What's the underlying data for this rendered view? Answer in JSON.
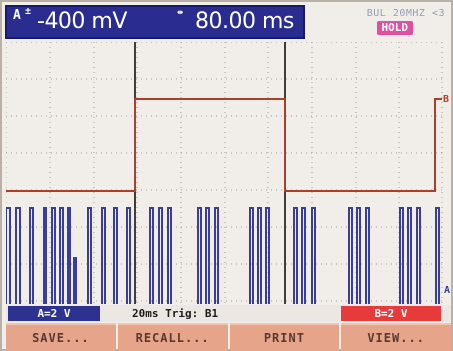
{
  "readout": {
    "channel_letter": "A",
    "amplitude_icon": "±",
    "amplitude_value": "-400 mV",
    "time_icon": "⇹",
    "time_value": "80.00 ms"
  },
  "status": {
    "text": "BUL 20MHZ <3",
    "hold_label": "HOLD"
  },
  "traces": {
    "trace_b_label": "B",
    "trace_a_label": "A"
  },
  "infobar": {
    "channel_a_range": "A=2 V",
    "timebase_trigger": "20ms  Trig: B1",
    "channel_b_range": "B=2 V"
  },
  "softkeys": [
    {
      "label": "SAVE..."
    },
    {
      "label": "RECALL..."
    },
    {
      "label": "PRINT"
    },
    {
      "label": "VIEW..."
    }
  ],
  "colors": {
    "readout_bg": "#2a2d8f",
    "trace_a": "#3a3e98",
    "trace_b": "#a8402c",
    "hold_badge": "#e04fa0",
    "channel_b_chip": "#e73a3a",
    "softkey_bg": "#e6a58a"
  }
}
